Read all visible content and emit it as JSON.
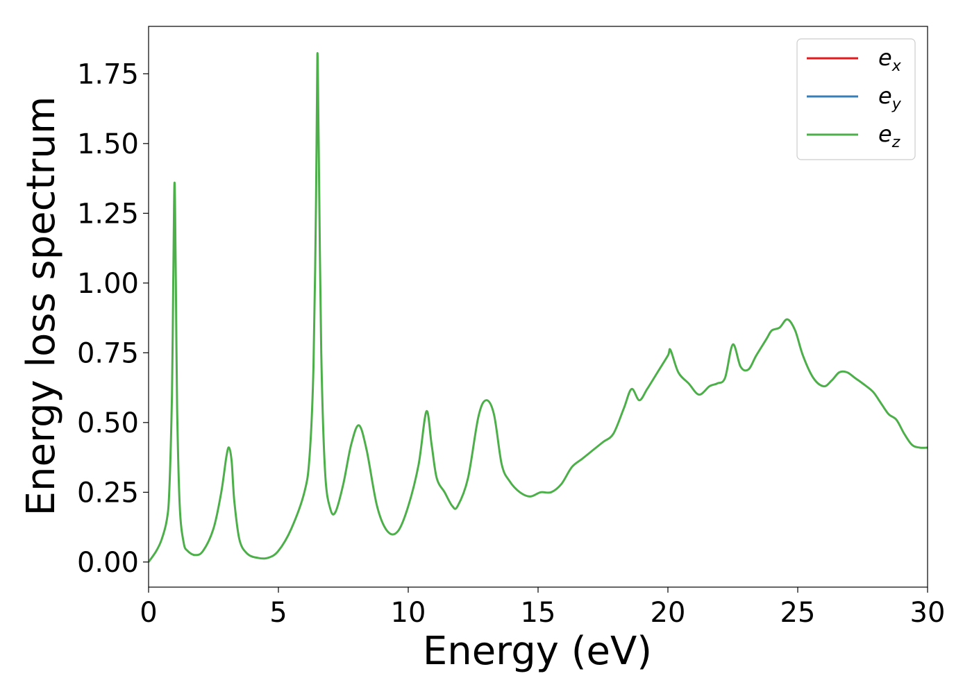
{
  "chart_data": {
    "type": "line",
    "title": "",
    "xlabel": "Energy (eV)",
    "ylabel": "Energy loss spectrum",
    "xlim": [
      0,
      30
    ],
    "ylim": [
      -0.09,
      1.92
    ],
    "xticks": [
      0,
      5,
      10,
      15,
      20,
      25,
      30
    ],
    "xtick_labels": [
      "0",
      "5",
      "10",
      "15",
      "20",
      "25",
      "30"
    ],
    "yticks": [
      0,
      0.25,
      0.5,
      0.75,
      1.0,
      1.25,
      1.5,
      1.75
    ],
    "ytick_labels": [
      "0.00",
      "0.25",
      "0.50",
      "0.75",
      "1.00",
      "1.25",
      "1.50",
      "1.75"
    ],
    "grid": false,
    "legend_position": "top-right",
    "series": [
      {
        "name": "e_x",
        "legend_base": "e",
        "legend_sub": "x",
        "color": "#e41a1c",
        "x": [],
        "y": []
      },
      {
        "name": "e_y",
        "legend_base": "e",
        "legend_sub": "y",
        "color": "#377eb8",
        "x": [],
        "y": []
      },
      {
        "name": "e_z",
        "legend_base": "e",
        "legend_sub": "z",
        "color": "#4daf4a",
        "x": [
          0,
          0.3,
          0.5,
          0.7,
          0.8,
          0.9,
          0.95,
          1.0,
          1.05,
          1.1,
          1.2,
          1.35,
          1.5,
          1.8,
          2.1,
          2.5,
          2.8,
          3.0,
          3.1,
          3.2,
          3.3,
          3.5,
          3.8,
          4.2,
          4.6,
          5.0,
          5.5,
          6.0,
          6.2,
          6.35,
          6.45,
          6.5,
          6.55,
          6.65,
          6.8,
          7.0,
          7.2,
          7.5,
          7.8,
          8.1,
          8.4,
          8.8,
          9.2,
          9.6,
          10.0,
          10.4,
          10.7,
          10.9,
          11.1,
          11.4,
          11.7,
          11.9,
          12.3,
          12.7,
          13.0,
          13.3,
          13.6,
          13.9,
          14.3,
          14.7,
          15.1,
          15.5,
          15.9,
          16.3,
          16.7,
          17.1,
          17.5,
          17.9,
          18.3,
          18.6,
          18.9,
          19.2,
          19.6,
          20.0,
          20.1,
          20.4,
          20.8,
          21.2,
          21.6,
          21.9,
          22.2,
          22.5,
          22.8,
          23.1,
          23.4,
          23.8,
          24.0,
          24.3,
          24.6,
          24.9,
          25.2,
          25.6,
          26.0,
          26.3,
          26.6,
          26.9,
          27.2,
          27.5,
          27.9,
          28.2,
          28.5,
          28.8,
          29.1,
          29.4,
          29.7,
          30.0
        ],
        "y": [
          0.0,
          0.04,
          0.08,
          0.15,
          0.26,
          0.6,
          1.0,
          1.36,
          1.0,
          0.55,
          0.2,
          0.07,
          0.04,
          0.025,
          0.04,
          0.12,
          0.25,
          0.38,
          0.41,
          0.36,
          0.22,
          0.08,
          0.03,
          0.015,
          0.015,
          0.04,
          0.12,
          0.25,
          0.38,
          0.7,
          1.3,
          1.82,
          1.5,
          0.75,
          0.32,
          0.19,
          0.18,
          0.28,
          0.42,
          0.49,
          0.4,
          0.2,
          0.11,
          0.11,
          0.2,
          0.35,
          0.54,
          0.42,
          0.3,
          0.25,
          0.2,
          0.2,
          0.3,
          0.52,
          0.58,
          0.53,
          0.35,
          0.29,
          0.25,
          0.235,
          0.25,
          0.25,
          0.28,
          0.34,
          0.37,
          0.4,
          0.43,
          0.46,
          0.55,
          0.62,
          0.58,
          0.62,
          0.68,
          0.74,
          0.76,
          0.68,
          0.64,
          0.6,
          0.63,
          0.64,
          0.66,
          0.78,
          0.7,
          0.69,
          0.74,
          0.8,
          0.83,
          0.84,
          0.87,
          0.83,
          0.74,
          0.66,
          0.63,
          0.65,
          0.68,
          0.68,
          0.66,
          0.64,
          0.61,
          0.57,
          0.53,
          0.51,
          0.46,
          0.42,
          0.41,
          0.41
        ]
      }
    ]
  }
}
